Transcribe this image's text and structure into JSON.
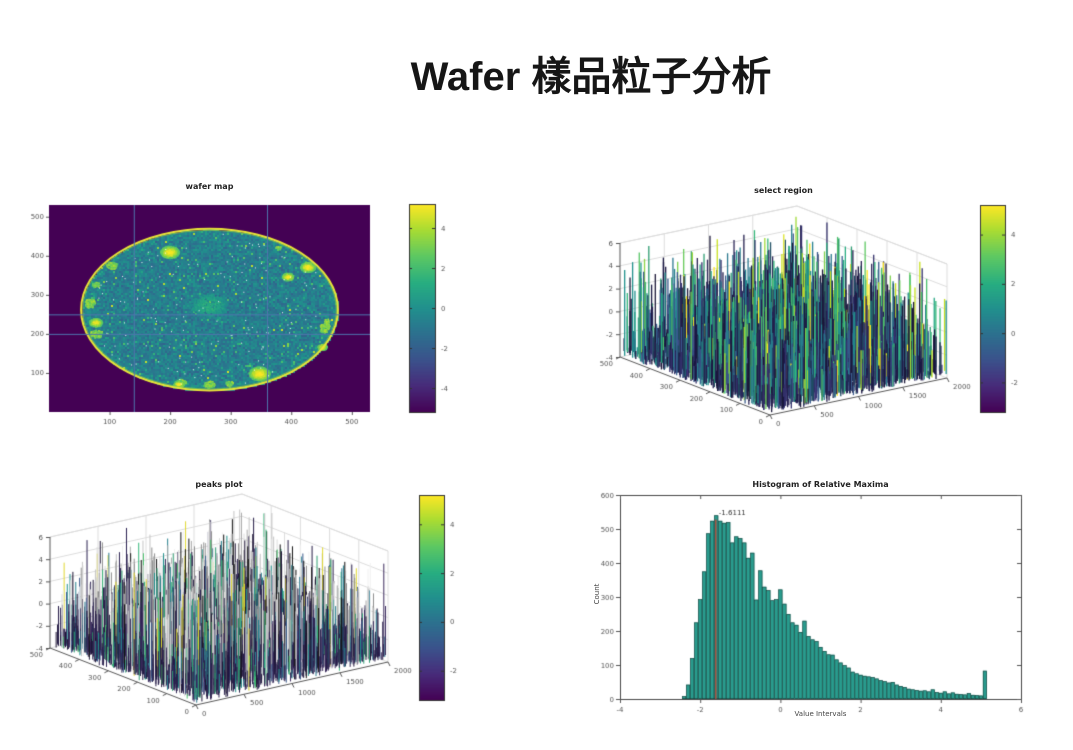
{
  "page": {
    "title": "Wafer 樣品粒子分析",
    "background": "#ffffff"
  },
  "chart_data": [
    {
      "id": "wafer_map",
      "type": "heatmap",
      "title": "wafer map",
      "xticks": [
        100,
        200,
        300,
        400,
        500
      ],
      "yticks": [
        100,
        200,
        300,
        400,
        500
      ],
      "xlim": [
        0,
        530
      ],
      "ylim": [
        0,
        530
      ],
      "colormap": "viridis",
      "colorbar_ticks": [
        4,
        2,
        0,
        -2,
        -4
      ],
      "clim": [
        -5,
        5
      ],
      "background_value": -5,
      "wafer": {
        "center": [
          265,
          262
        ],
        "radius": [
          212,
          207
        ],
        "rim_color": "#e9e438"
      },
      "selection_lines": {
        "x": [
          140,
          360
        ],
        "y": [
          250,
          200
        ],
        "color": "#4f76ad"
      },
      "hotspots": [
        [
          200,
          408,
          16,
          1
        ],
        [
          348,
          97,
          18,
          1
        ],
        [
          78,
          228,
          11,
          1
        ],
        [
          428,
          370,
          13,
          1
        ],
        [
          452,
          165,
          8,
          1
        ],
        [
          395,
          345,
          10,
          1
        ],
        [
          215,
          70,
          9,
          1
        ],
        [
          265,
          272,
          32,
          0
        ]
      ],
      "description": "wafer disc of viridis noise (values ~ -2..0), yellow rim, yellow hotspots, white speckles, blue region-selection crosshair lines"
    },
    {
      "id": "select_region",
      "type": "3d-stem",
      "title": "select region",
      "xticks": [
        0,
        500,
        1000,
        1500,
        2000
      ],
      "yticks": [
        0,
        100,
        200,
        300,
        400,
        500
      ],
      "zticks": [
        -4,
        -2,
        0,
        2,
        4,
        6
      ],
      "xlim": [
        0,
        2000
      ],
      "ylim": [
        0,
        500
      ],
      "zlim": [
        -4,
        6
      ],
      "colormap": "viridis",
      "colorbar_ticks": [
        4,
        2,
        0,
        -2
      ],
      "clim": [
        -3,
        5
      ],
      "style": "colored",
      "description": "dense field of vertical noise spikes colored by height (dark indigo base, teal/green/yellow tops)"
    },
    {
      "id": "peaks_plot",
      "type": "3d-stem",
      "title": "peaks plot",
      "xticks": [
        0,
        500,
        1000,
        1500,
        2000
      ],
      "yticks": [
        0,
        100,
        200,
        300,
        400,
        500
      ],
      "zticks": [
        -4,
        -2,
        0,
        2,
        4,
        6
      ],
      "xlim": [
        0,
        2000
      ],
      "ylim": [
        0,
        500
      ],
      "zlim": [
        -4,
        6
      ],
      "colormap": "viridis",
      "colorbar_ticks": [
        4,
        2,
        0,
        -2
      ],
      "clim": [
        -3,
        5
      ],
      "style": "white-peaks",
      "description": "same spike field with relative maxima drawn as white/gray spikes above dark purple carpet"
    },
    {
      "id": "histogram",
      "type": "bar",
      "title": "Histogram of Relative Maxima",
      "xlabel": "Value Intervals",
      "ylabel": "Count",
      "xticks": [
        -4,
        -2,
        0,
        2,
        4,
        6
      ],
      "yticks": [
        0,
        100,
        200,
        300,
        400,
        500,
        600
      ],
      "xlim": [
        -4,
        6
      ],
      "ylim": [
        0,
        600
      ],
      "bin_start": -2.45,
      "bin_width": 0.1,
      "counts": [
        8,
        42,
        120,
        225,
        293,
        375,
        487,
        524,
        540,
        524,
        518,
        520,
        460,
        478,
        473,
        460,
        415,
        430,
        292,
        378,
        330,
        320,
        290,
        293,
        322,
        280,
        250,
        225,
        218,
        197,
        230,
        185,
        175,
        170,
        153,
        141,
        131,
        130,
        116,
        107,
        99,
        92,
        80,
        75,
        71,
        68,
        66,
        64,
        60,
        55,
        52,
        48,
        50,
        42,
        38,
        35,
        30,
        28,
        26,
        24,
        25,
        22,
        28,
        20,
        18,
        22,
        16,
        19,
        15,
        14,
        13,
        17,
        12,
        11,
        10,
        83
      ],
      "bar_color": "#2a9d8f",
      "bar_edge": "#14403a",
      "annotation": {
        "x": -1.6111,
        "label": "-1.6111",
        "line_color": "#a84f3f",
        "line_top_count": 528
      }
    }
  ]
}
